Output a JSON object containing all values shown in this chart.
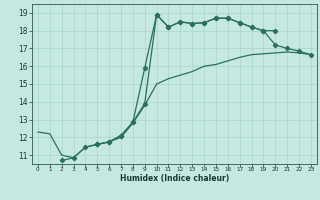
{
  "xlabel": "Humidex (Indice chaleur)",
  "bg_color": "#c5e8e0",
  "grid_color_major": "#a8d4cc",
  "grid_color_minor": "#b8ddd6",
  "line_color": "#2a7060",
  "xlim": [
    -0.5,
    23.5
  ],
  "ylim": [
    10.5,
    19.5
  ],
  "yticks": [
    11,
    12,
    13,
    14,
    15,
    16,
    17,
    18,
    19
  ],
  "xticks": [
    0,
    1,
    2,
    3,
    4,
    5,
    6,
    7,
    8,
    9,
    10,
    11,
    12,
    13,
    14,
    15,
    16,
    17,
    18,
    19,
    20,
    21,
    22,
    23
  ],
  "line1_x": [
    0,
    1,
    2,
    3,
    4,
    5,
    6,
    7,
    8,
    9,
    10,
    11,
    12,
    13,
    14,
    15,
    16,
    17,
    18,
    19,
    20,
    21,
    22,
    23
  ],
  "line1_y": [
    12.3,
    12.2,
    11.0,
    10.85,
    11.45,
    11.6,
    11.75,
    12.0,
    12.8,
    13.8,
    15.0,
    15.3,
    15.5,
    15.7,
    16.0,
    16.1,
    16.3,
    16.5,
    16.65,
    16.7,
    16.75,
    16.8,
    16.75,
    16.65
  ],
  "line2_x": [
    2,
    3,
    4,
    5,
    6,
    7,
    8,
    9,
    10,
    11,
    12,
    13,
    14,
    15,
    16,
    17,
    18,
    19,
    20,
    21,
    22,
    23
  ],
  "line2_y": [
    10.7,
    10.85,
    11.45,
    11.6,
    11.75,
    12.1,
    12.85,
    13.9,
    18.9,
    18.2,
    18.5,
    18.4,
    18.45,
    18.7,
    18.7,
    18.45,
    18.2,
    18.0,
    17.2,
    17.0,
    16.85,
    16.65
  ],
  "line3_x": [
    5,
    6,
    7,
    8,
    9,
    10,
    11,
    12,
    13,
    14,
    15,
    16,
    17,
    18,
    19,
    20
  ],
  "line3_y": [
    11.6,
    11.75,
    12.1,
    12.85,
    15.9,
    18.9,
    18.2,
    18.5,
    18.4,
    18.45,
    18.7,
    18.7,
    18.45,
    18.2,
    18.0,
    18.0
  ]
}
